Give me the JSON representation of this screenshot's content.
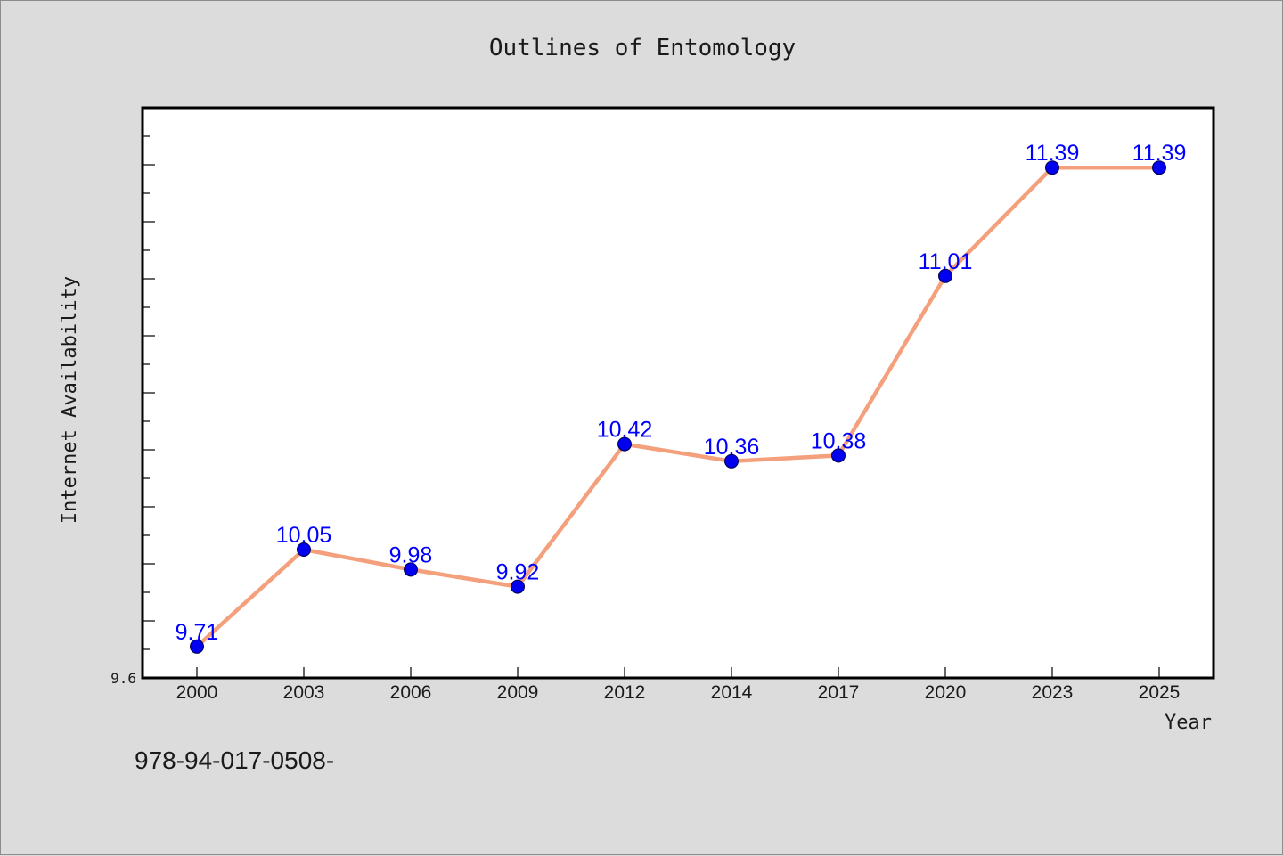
{
  "chart_data": {
    "type": "line",
    "title": "Outlines of Entomology",
    "xlabel": "Year",
    "ylabel": "Internet Availability",
    "categories": [
      "2000",
      "2003",
      "2006",
      "2009",
      "2012",
      "2014",
      "2017",
      "2020",
      "2023",
      "2025"
    ],
    "series": [
      {
        "values": [
          9.71,
          10.05,
          9.98,
          9.92,
          10.42,
          10.36,
          10.38,
          11.01,
          11.39,
          11.39
        ],
        "labels": [
          "9.71",
          "10.05",
          "9.98",
          "9.92",
          "10.42",
          "10.36",
          "10.38",
          "11.01",
          "11.39",
          "11.39"
        ],
        "line_color": "#f4a07c",
        "marker_color": "#0000ee"
      }
    ],
    "ylim": [
      9.6,
      11.6
    ],
    "ytick_labels": [
      "9.6"
    ],
    "grid": false,
    "legend": false
  },
  "footnote": "978-94-017-0508-"
}
